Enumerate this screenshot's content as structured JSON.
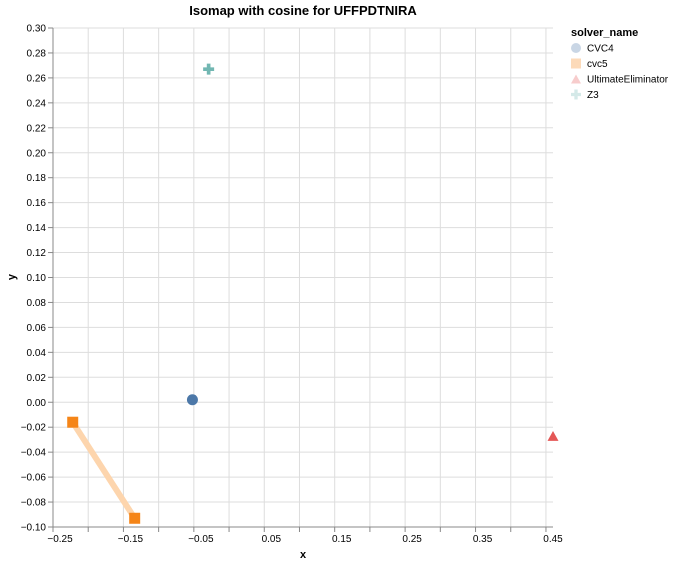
{
  "chart_data": {
    "type": "scatter",
    "title": "Isomap with cosine for UFFPDTNIRA",
    "xlabel": "x",
    "ylabel": "y",
    "xlim": [
      -0.26,
      0.45
    ],
    "ylim": [
      -0.1,
      0.3
    ],
    "x_ticks": [
      -0.25,
      -0.15,
      -0.05,
      0.05,
      0.15,
      0.25,
      0.35,
      0.45
    ],
    "x_tick_labels": [
      "−0.25",
      "−0.15",
      "−0.05",
      "0.05",
      "0.15",
      "0.25",
      "0.35",
      "0.45"
    ],
    "y_ticks": [
      -0.1,
      -0.08,
      -0.06,
      -0.04,
      -0.02,
      0.0,
      0.02,
      0.04,
      0.06,
      0.08,
      0.1,
      0.12,
      0.14,
      0.16,
      0.18,
      0.2,
      0.22,
      0.24,
      0.26,
      0.28,
      0.3
    ],
    "y_tick_labels": [
      "−0.10",
      "−0.08",
      "−0.06",
      "−0.04",
      "−0.02",
      "0.00",
      "0.02",
      "0.04",
      "0.06",
      "0.08",
      "0.10",
      "0.12",
      "0.14",
      "0.16",
      "0.18",
      "0.20",
      "0.22",
      "0.24",
      "0.26",
      "0.28",
      "0.30"
    ],
    "grid": true,
    "legend": {
      "title": "solver_name",
      "placement": "right"
    },
    "series": [
      {
        "name": "CVC4",
        "shape": "circle",
        "color": "#4c78a8",
        "points": [
          [
            -0.062,
            0.002
          ]
        ]
      },
      {
        "name": "cvc5",
        "shape": "square",
        "color": "#f58518",
        "line_color": "#fdd5ad",
        "points": [
          [
            -0.232,
            -0.016
          ],
          [
            -0.144,
            -0.093
          ]
        ]
      },
      {
        "name": "UltimateEliminator",
        "shape": "triangle",
        "color": "#e45756",
        "points": [
          [
            0.45,
            -0.027
          ]
        ]
      },
      {
        "name": "Z3",
        "shape": "cross",
        "color": "#72b7b2",
        "points": [
          [
            -0.039,
            0.267
          ]
        ]
      }
    ]
  }
}
